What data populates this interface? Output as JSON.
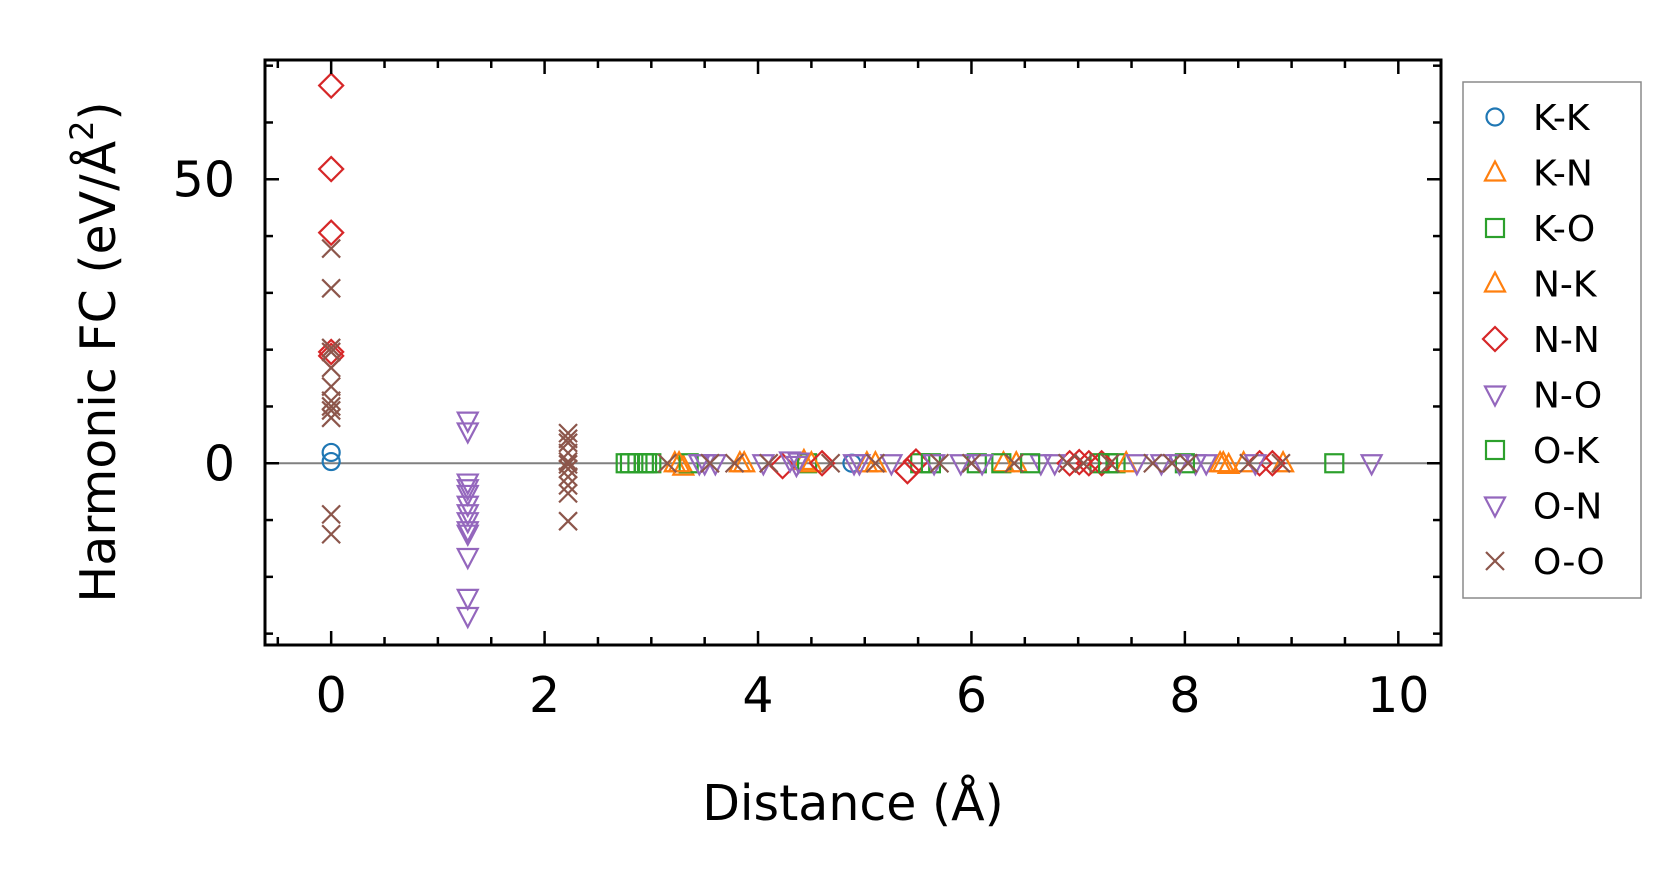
{
  "chart_data": {
    "type": "scatter",
    "xlabel": "Distance (Å)",
    "ylabel": "Harmonic FC (eV/Å²)",
    "ylabel_main": "Harmonic FC (eV/Å",
    "ylabel_sup": "2",
    "ylabel_end": ")",
    "xlim": [
      -0.62,
      10.4
    ],
    "ylim": [
      -32,
      71
    ],
    "x_ticks": [
      0,
      2,
      4,
      6,
      8,
      10
    ],
    "x_tick_labels": [
      "0",
      "2",
      "4",
      "6",
      "8",
      "10"
    ],
    "y_ticks": [
      0,
      50
    ],
    "y_tick_labels": [
      "0",
      "50"
    ],
    "grid": false,
    "zero_line": true,
    "legend_position": "right-outside",
    "series": [
      {
        "name": "K-K",
        "marker": "circle",
        "color": "#1f77b4",
        "x": [
          0,
          0,
          4.88
        ],
        "y": [
          1.9,
          0.3,
          0
        ]
      },
      {
        "name": "K-N",
        "marker": "triangle-up",
        "color": "#ff7f0e",
        "x": [
          3.22,
          3.3,
          3.83,
          4.43,
          5.02,
          6.3,
          8.36,
          8.41,
          8.92
        ],
        "y": [
          0,
          -0.6,
          0,
          0.4,
          0,
          0,
          0,
          -0.3,
          0
        ]
      },
      {
        "name": "K-O",
        "marker": "square",
        "color": "#2ca02c",
        "x": [
          2.76,
          2.87,
          2.96,
          3.35,
          4.46,
          5.52,
          6.05,
          6.28,
          7.2,
          7.35,
          9.4
        ],
        "y": [
          0,
          0,
          0,
          0,
          0,
          0,
          0,
          0,
          0,
          0,
          0
        ]
      },
      {
        "name": "N-K",
        "marker": "triangle-up",
        "color": "#ff7f0e",
        "x": [
          3.26,
          3.87,
          4.5,
          5.1,
          6.42,
          7.45,
          8.33,
          8.55
        ],
        "y": [
          0,
          0,
          0,
          0,
          0,
          0,
          0,
          0
        ]
      },
      {
        "name": "N-N",
        "marker": "diamond",
        "color": "#d62728",
        "x": [
          0,
          0,
          0,
          0,
          0,
          4.23,
          4.6,
          5.4,
          5.48,
          6.92,
          7.01,
          7.1,
          7.22,
          8.7,
          8.82
        ],
        "y": [
          66.5,
          51.8,
          40.6,
          19.6,
          18.9,
          -0.5,
          0,
          -1.4,
          0.3,
          0,
          0.2,
          0,
          0,
          0,
          0
        ]
      },
      {
        "name": "N-O",
        "marker": "triangle-down",
        "color": "#9467bd",
        "x": [
          1.28,
          1.28,
          1.28,
          1.28,
          1.28,
          1.28,
          1.28,
          1.28,
          1.28,
          1.28,
          3.45,
          3.6,
          4.05,
          4.3,
          4.36,
          4.95,
          5.25,
          5.9,
          6.65,
          7.78,
          8.1,
          8.66,
          9.75
        ],
        "y": [
          7.5,
          5.6,
          -3.4,
          -5.4,
          -7.3,
          -10.2,
          -12.4,
          -16.5,
          -23.7,
          -26.9,
          0,
          0,
          0,
          0.5,
          -0.3,
          0,
          0,
          0,
          0,
          0,
          0,
          0,
          0
        ]
      },
      {
        "name": "O-K",
        "marker": "square",
        "color": "#2ca02c",
        "x": [
          2.8,
          2.93,
          3.0,
          5.62,
          6.55,
          7.28,
          8.0
        ],
        "y": [
          0,
          0,
          0,
          0,
          0,
          0,
          0
        ]
      },
      {
        "name": "O-N",
        "marker": "triangle-down",
        "color": "#9467bd",
        "x": [
          1.28,
          1.28,
          1.28,
          3.5,
          4.38,
          4.9,
          5.65,
          6.1,
          6.78,
          7.55,
          7.95,
          8.2
        ],
        "y": [
          -4.4,
          -8.8,
          -11.8,
          0,
          0.3,
          0,
          0,
          0,
          0,
          0,
          0,
          0
        ]
      },
      {
        "name": "O-O",
        "marker": "x",
        "color": "#8c564b",
        "x": [
          0,
          0,
          0,
          0,
          0,
          0,
          0,
          0,
          0,
          0,
          0,
          0,
          2.22,
          2.22,
          2.22,
          2.22,
          2.22,
          2.22,
          2.22,
          2.22,
          2.22,
          2.22,
          2.22,
          3.15,
          3.55,
          3.78,
          4.1,
          4.68,
          5.1,
          5.7,
          6.0,
          6.4,
          6.9,
          7.05,
          7.3,
          7.7,
          7.88,
          8.03,
          8.6,
          8.9
        ],
        "y": [
          37.8,
          30.8,
          19.6,
          16.8,
          13.5,
          11.0,
          9.3,
          8.0,
          -9.0,
          -12.5,
          20.3,
          10.0,
          5.3,
          3.6,
          1.8,
          0.3,
          -1.0,
          -2.4,
          -3.9,
          -5.3,
          -10.2,
          4.3,
          -0.2,
          0,
          0,
          0,
          0,
          0,
          0,
          0,
          0,
          0,
          0,
          0,
          0,
          0,
          0,
          0,
          0,
          0
        ]
      }
    ]
  }
}
